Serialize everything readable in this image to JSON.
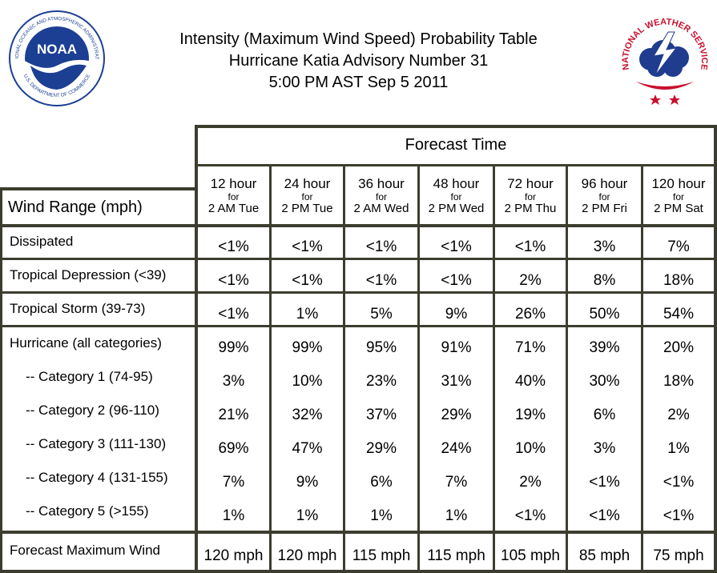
{
  "header": {
    "line1": "Intensity (Maximum Wind Speed) Probability Table",
    "line2": "Hurricane Katia Advisory Number 31",
    "line3": "5:00 PM AST Sep 5 2011"
  },
  "logos": {
    "noaa_text": "NOAA",
    "noaa_ring": "NATIONAL OCEANIC AND ATMOSPHERIC ADMINISTRATION",
    "noaa_ring_bottom": "U.S. DEPARTMENT OF COMMERCE",
    "nws_ring": "NATIONAL WEATHER SERVICE"
  },
  "table": {
    "forecast_time_label": "Forecast Time",
    "wind_range_label": "Wind Range (mph)",
    "columns": [
      {
        "hour": "12 hour",
        "for": "for",
        "day": "2 AM Tue"
      },
      {
        "hour": "24 hour",
        "for": "for",
        "day": "2 PM Tue"
      },
      {
        "hour": "36 hour",
        "for": "for",
        "day": "2 AM Wed"
      },
      {
        "hour": "48 hour",
        "for": "for",
        "day": "2 PM Wed"
      },
      {
        "hour": "72 hour",
        "for": "for",
        "day": "2 PM Thu"
      },
      {
        "hour": "96 hour",
        "for": "for",
        "day": "2 PM Fri"
      },
      {
        "hour": "120 hour",
        "for": "for",
        "day": "2 PM Sat"
      }
    ],
    "rows": [
      {
        "label": "Dissipated",
        "values": [
          "<1%",
          "<1%",
          "<1%",
          "<1%",
          "<1%",
          "3%",
          "7%"
        ]
      },
      {
        "label": "Tropical Depression (<39)",
        "values": [
          "<1%",
          "<1%",
          "<1%",
          "<1%",
          "2%",
          "8%",
          "18%"
        ]
      },
      {
        "label": "Tropical Storm (39-73)",
        "values": [
          "<1%",
          "1%",
          "5%",
          "9%",
          "26%",
          "50%",
          "54%"
        ]
      },
      {
        "label": "Hurricane (all categories)",
        "values": [
          "99%",
          "99%",
          "95%",
          "91%",
          "71%",
          "39%",
          "20%"
        ]
      },
      {
        "label": "-- Category 1 (74-95)",
        "values": [
          "3%",
          "10%",
          "23%",
          "31%",
          "40%",
          "30%",
          "18%"
        ]
      },
      {
        "label": "-- Category 2 (96-110)",
        "values": [
          "21%",
          "32%",
          "37%",
          "29%",
          "19%",
          "6%",
          "2%"
        ]
      },
      {
        "label": "-- Category 3 (111-130)",
        "values": [
          "69%",
          "47%",
          "29%",
          "24%",
          "10%",
          "3%",
          "1%"
        ]
      },
      {
        "label": "-- Category 4 (131-155)",
        "values": [
          "7%",
          "9%",
          "6%",
          "7%",
          "2%",
          "<1%",
          "<1%"
        ]
      },
      {
        "label": "-- Category 5 (>155)",
        "values": [
          "1%",
          "1%",
          "1%",
          "1%",
          "<1%",
          "<1%",
          "<1%"
        ]
      },
      {
        "label": "Forecast Maximum Wind",
        "values": [
          "120 mph",
          "120 mph",
          "115 mph",
          "115 mph",
          "105 mph",
          "85 mph",
          "75 mph"
        ]
      }
    ]
  },
  "colors": {
    "border": "#3d3d2f",
    "noaa_blue": "#1c3f94",
    "nws_red": "#c8102e",
    "nws_blue": "#1f3c8f"
  }
}
